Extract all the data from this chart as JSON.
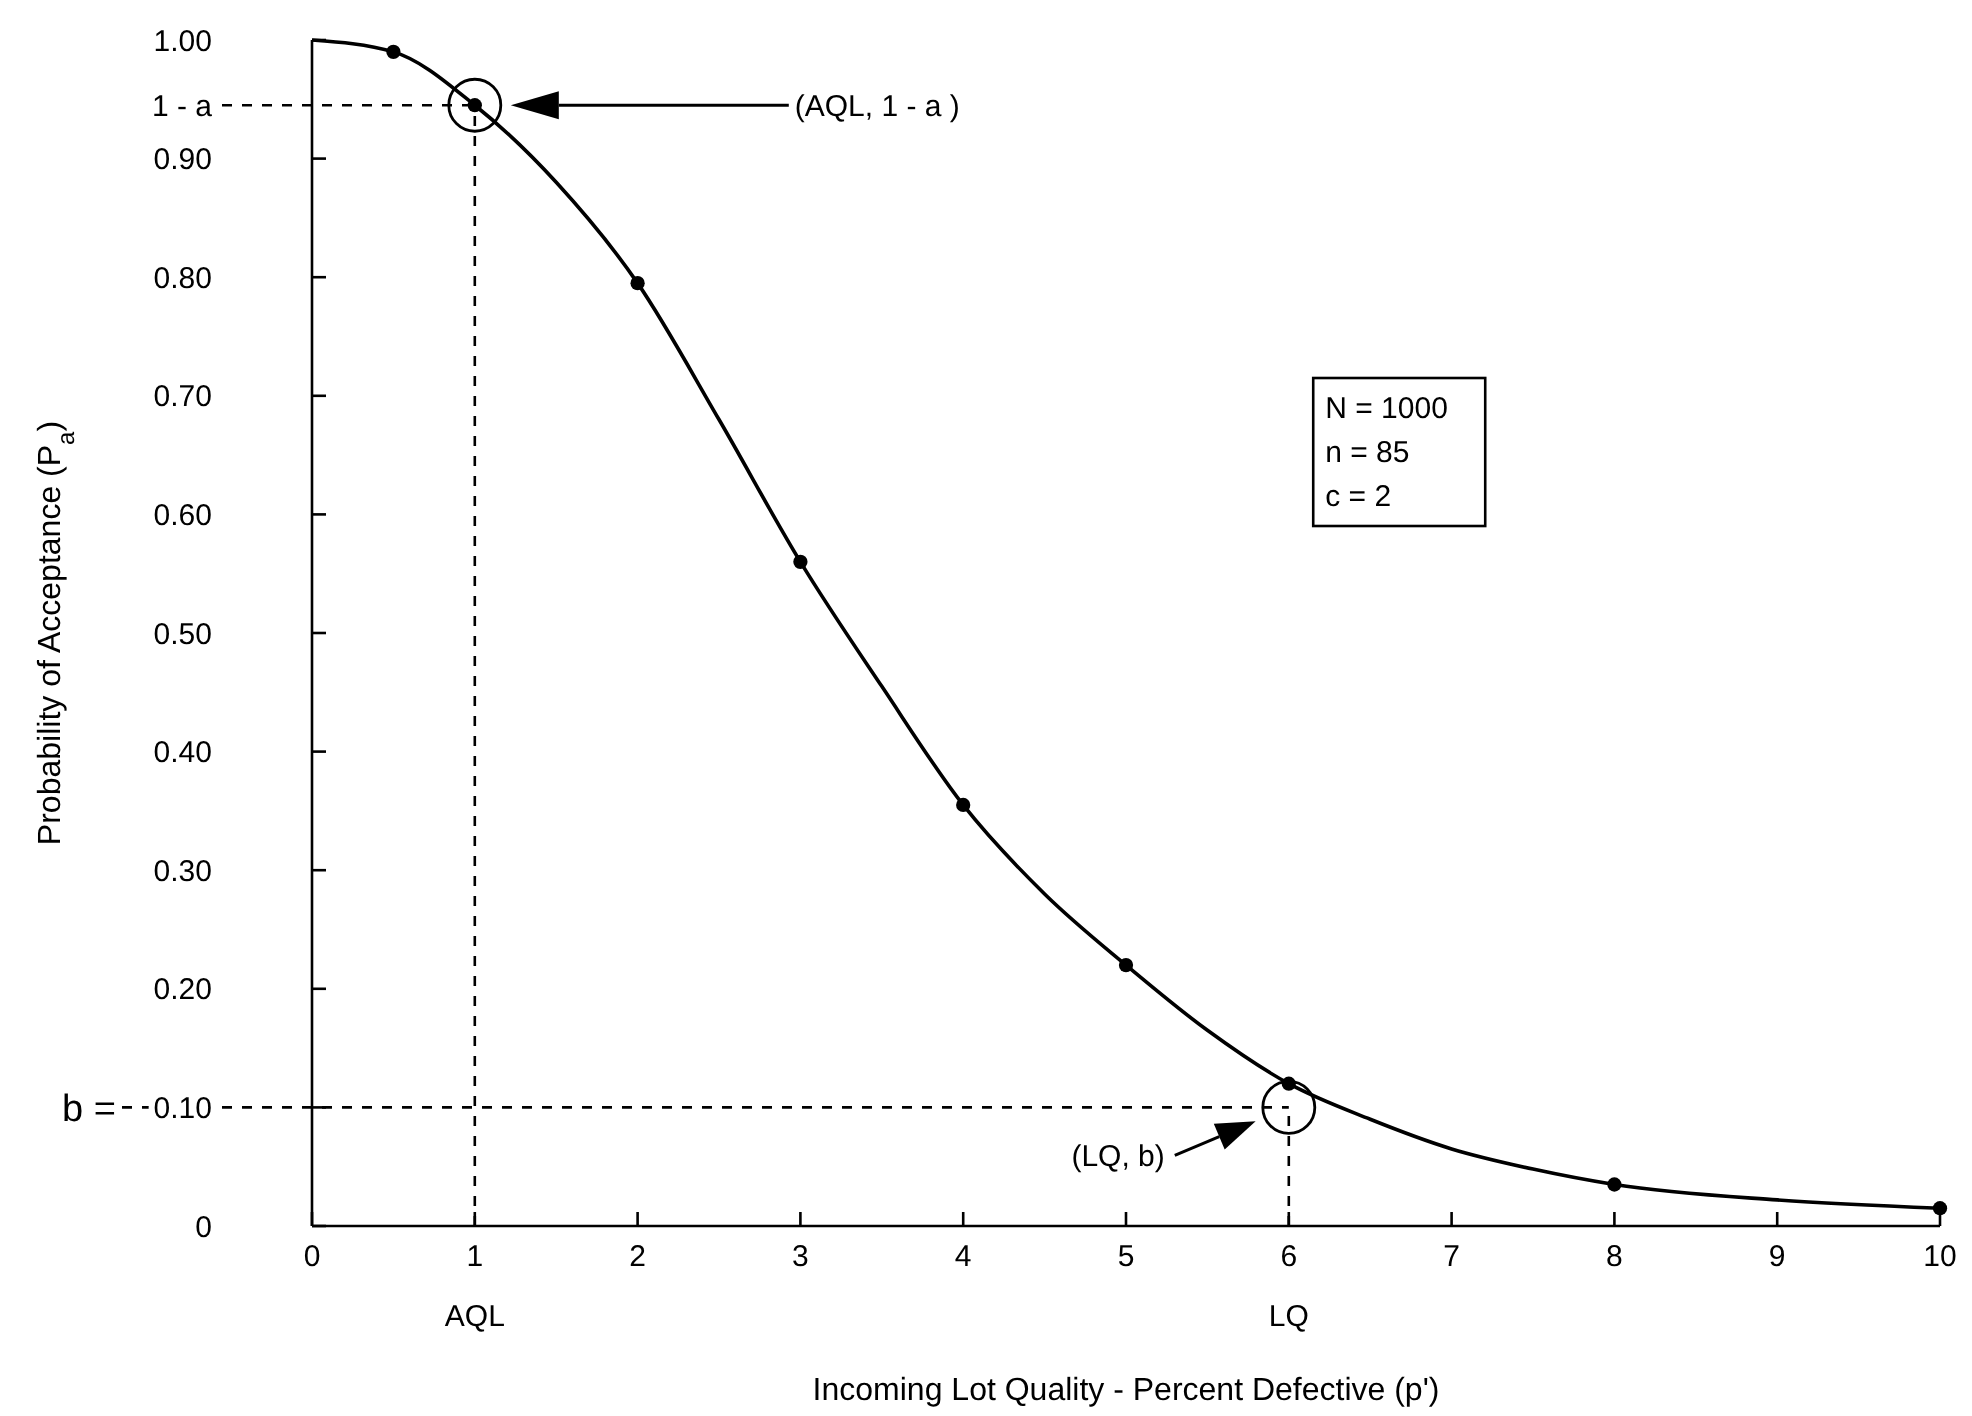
{
  "chart_data": {
    "type": "line",
    "xlabel": "Incoming Lot Quality - Percent Defective (p')",
    "ylabel": "Probability of Acceptance (P$_{a}$)",
    "xlim": [
      0,
      10
    ],
    "xticks": [
      0,
      1,
      2,
      3,
      4,
      5,
      6,
      7,
      8,
      9,
      10
    ],
    "ylim": [
      0,
      1
    ],
    "yticks": [
      {
        "value": 0,
        "label": "0"
      },
      {
        "value": 0.1,
        "label": "0.10"
      },
      {
        "value": 0.2,
        "label": "0.20"
      },
      {
        "value": 0.3,
        "label": "0.30"
      },
      {
        "value": 0.4,
        "label": "0.40"
      },
      {
        "value": 0.5,
        "label": "0.50"
      },
      {
        "value": 0.6,
        "label": "0.60"
      },
      {
        "value": 0.7,
        "label": "0.70"
      },
      {
        "value": 0.8,
        "label": "0.80"
      },
      {
        "value": 0.9,
        "label": "0.90"
      },
      {
        "value": 1,
        "label": "1.00"
      }
    ],
    "grid": false,
    "series": [
      {
        "color": "#000000",
        "marker": "none",
        "line_style": "solid",
        "x": [
          0,
          0.5,
          1,
          1.5,
          2,
          2.5,
          3,
          3.5,
          4,
          4.5,
          5,
          5.5,
          6,
          6.5,
          7,
          7.5,
          8,
          9,
          10
        ],
        "values": [
          1,
          0.99,
          0.945,
          0.88,
          0.795,
          0.68,
          0.56,
          0.455,
          0.355,
          0.28,
          0.22,
          0.165,
          0.12,
          0.09,
          0.065,
          0.048,
          0.035,
          0.022,
          0.015
        ]
      },
      {
        "type": "scatter",
        "color": "#000000",
        "marker": "circle",
        "x": [
          0.5,
          1,
          2,
          3,
          4,
          5,
          6,
          8,
          10
        ],
        "values": [
          0.99,
          0.945,
          0.795,
          0.56,
          0.355,
          0.22,
          0.12,
          0.035,
          0.015
        ]
      },
      {
        "type": "bubble",
        "color": "#000000",
        "x": [
          1,
          6
        ],
        "values": [
          0.945,
          0.1
        ],
        "sizes": [
          1,
          1
        ]
      }
    ],
    "ref_lines": [
      {
        "axis": "x",
        "value": 1,
        "label": "AQL",
        "line_style": "dashed"
      },
      {
        "axis": "y",
        "value": 0.945,
        "label": "1 - a",
        "line_style": "dashed"
      },
      {
        "axis": "x",
        "value": 6,
        "label": "LQ",
        "line_style": "dashed"
      },
      {
        "axis": "y",
        "value": 0.1,
        "label": "b =",
        "line_style": "dashed"
      }
    ],
    "annotations": [
      "(AQL, 1 - a )",
      "(LQ, b)",
      "N = 1000\nn = 85\nc = 2"
    ]
  }
}
